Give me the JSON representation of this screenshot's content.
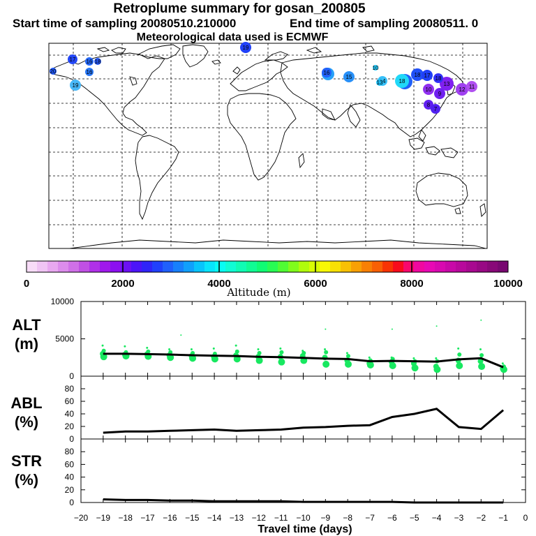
{
  "header": {
    "title": "Retroplume summary for gosan_200805",
    "start": "Start time of sampling 20080510.210000",
    "end": "End time of sampling 20080511.     0",
    "met": "Meteorological data used is ECMWF"
  },
  "colorbar": {
    "label": "Altitude (m)",
    "ticks": [
      "0",
      "2000",
      "4000",
      "6000",
      "8000",
      "10000"
    ],
    "colors": [
      "#f8dcf8",
      "#f0c4f4",
      "#e8a8f0",
      "#dc8cec",
      "#d070e8",
      "#c050e4",
      "#b030e8",
      "#a018ec",
      "#8c10f0",
      "#6c10f4",
      "#4c14f8",
      "#3024f8",
      "#2040fc",
      "#2060fc",
      "#1880fc",
      "#10a0fc",
      "#08c4fc",
      "#08e4fc",
      "#08fcf4",
      "#10fcd4",
      "#10fcb4",
      "#10fc94",
      "#10fc74",
      "#28fc54",
      "#50fc34",
      "#80fc1c",
      "#b0fc0c",
      "#d8fc04",
      "#f8f804",
      "#f8e004",
      "#f8c004",
      "#f8a004",
      "#f88004",
      "#f86004",
      "#f83404",
      "#f80c1c",
      "#f8086c",
      "#f008a0",
      "#e808b4",
      "#d808b0",
      "#c808a8",
      "#b8089c",
      "#a80890",
      "#980884",
      "#880878",
      "#780870"
    ]
  },
  "map_points": [
    {
      "label": "17",
      "color": "#2448f8"
    },
    {
      "label": "16",
      "color": "#2468f8"
    },
    {
      "label": "18",
      "color": "#2458f8"
    },
    {
      "label": "16",
      "color": "#2878f8"
    },
    {
      "label": "19",
      "color": "#48b8f8"
    },
    {
      "label": "10",
      "color": "#28c8f8"
    },
    {
      "label": "14",
      "color": "#38c0f8"
    },
    {
      "label": "15",
      "color": "#2890f8"
    },
    {
      "label": "16",
      "color": "#28a0f8"
    },
    {
      "label": "17",
      "color": "#2060f8"
    },
    {
      "label": "18",
      "color": "#2050f8"
    },
    {
      "label": "13",
      "color": "#8020f0"
    },
    {
      "label": "12",
      "color": "#a040f0"
    },
    {
      "label": "11",
      "color": "#b050f0"
    },
    {
      "label": "10",
      "color": "#9030f0"
    },
    {
      "label": "9",
      "color": "#7020f0"
    },
    {
      "label": "8",
      "color": "#6020f0"
    },
    {
      "label": "7",
      "color": "#5020f0"
    },
    {
      "label": "19",
      "color": "#2040f8"
    },
    {
      "label": "16",
      "color": "#2060f8"
    },
    {
      "label": "17",
      "color": "#2040f8"
    },
    {
      "label": "18",
      "color": "#3030f8"
    },
    {
      "label": "13",
      "color": "#20c0f8"
    },
    {
      "label": "18",
      "color": "#20d8f8"
    },
    {
      "label": "20",
      "color": "#2058f8"
    }
  ],
  "chart_data": [
    {
      "type": "scatter+line",
      "panel": "ALT",
      "ylabel": "ALT\n(m)",
      "ylim": [
        0,
        10000
      ],
      "yticks": [
        "10000",
        "5000",
        "0"
      ],
      "x": [
        -19,
        -18,
        -17,
        -16,
        -15,
        -14,
        -13,
        -12,
        -11,
        -10,
        -9,
        -8,
        -7,
        -6,
        -5,
        -4,
        -3,
        -2,
        -1
      ],
      "line": [
        3000,
        3000,
        2950,
        2900,
        2800,
        2750,
        2700,
        2600,
        2550,
        2450,
        2350,
        2300,
        2000,
        2050,
        2000,
        1950,
        2250,
        2400,
        1200
      ],
      "clusters": [
        [
          4100,
          3400,
          3000,
          2600
        ],
        [
          4000,
          3200,
          2900,
          2700
        ],
        [
          3800,
          3300,
          2950,
          2650
        ],
        [
          3600,
          3200,
          2800,
          2500
        ],
        [
          3600,
          3100,
          2700,
          2400
        ],
        [
          3700,
          3000,
          2600,
          2300
        ],
        [
          4100,
          3300,
          2800,
          2300
        ],
        [
          3600,
          3100,
          2600,
          2100
        ],
        [
          3700,
          3200,
          2600,
          1900
        ],
        [
          3400,
          3100,
          2700,
          2100
        ],
        [
          3600,
          3200,
          2500,
          1600
        ],
        [
          3100,
          2700,
          2100,
          1600
        ],
        [
          2500,
          2100,
          1700,
          1500
        ],
        [
          2500,
          2300,
          1900,
          1400
        ],
        [
          2400,
          2000,
          1700,
          1100
        ],
        [
          2400,
          2000,
          1300,
          900
        ],
        [
          3700,
          2900,
          2100,
          1400
        ],
        [
          3600,
          2800,
          2000,
          1300
        ],
        [
          1700,
          1300,
          1000,
          900
        ]
      ],
      "x_axis": {
        "xlim": [
          -20,
          0
        ]
      }
    },
    {
      "type": "line",
      "panel": "ABL",
      "ylabel": "ABL\n(%)",
      "ylim": [
        0,
        100
      ],
      "yticks": [
        "80",
        "60",
        "40",
        "20",
        "0"
      ],
      "x": [
        -19,
        -18,
        -17,
        -16,
        -15,
        -14,
        -13,
        -12,
        -11,
        -10,
        -9,
        -8,
        -7,
        -6,
        -5,
        -4,
        -3,
        -2,
        -1
      ],
      "values": [
        10,
        12,
        12,
        13,
        14,
        15,
        13,
        14,
        15,
        18,
        19,
        21,
        22,
        35,
        40,
        48,
        19,
        16,
        46
      ]
    },
    {
      "type": "line",
      "panel": "STR",
      "ylabel": "STR\n(%)",
      "ylim": [
        0,
        100
      ],
      "yticks": [
        "80",
        "60",
        "40",
        "20",
        "0"
      ],
      "x": [
        -19,
        -18,
        -17,
        -16,
        -15,
        -14,
        -13,
        -12,
        -11,
        -10,
        -9,
        -8,
        -7,
        -6,
        -5,
        -4,
        -3,
        -2,
        -1
      ],
      "values": [
        5,
        4,
        4,
        3,
        3,
        2,
        2,
        2,
        2,
        1,
        1,
        1,
        1,
        1,
        0,
        0,
        0,
        0,
        0
      ]
    }
  ],
  "x_axis": {
    "xlabel": "Travel time (days)",
    "ticks": [
      "−20",
      "−19",
      "−18",
      "−17",
      "−16",
      "−15",
      "−14",
      "−13",
      "−12",
      "−11",
      "−10",
      "−9",
      "−8",
      "−7",
      "−6",
      "−5",
      "−4",
      "−3",
      "−2",
      "−1",
      "0"
    ]
  }
}
